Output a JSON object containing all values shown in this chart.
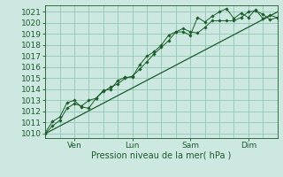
{
  "background_color": "#cce8e0",
  "grid_color": "#99ccbb",
  "line_color": "#1a5c2a",
  "marker_color": "#1a5c2a",
  "ylabel_ticks": [
    1010,
    1011,
    1012,
    1013,
    1014,
    1015,
    1016,
    1017,
    1018,
    1019,
    1020,
    1021
  ],
  "xlabel": "Pression niveau de la mer( hPa )",
  "xlim": [
    0,
    96
  ],
  "ylim": [
    1009.6,
    1021.6
  ],
  "x_tick_positions": [
    12,
    36,
    60,
    84
  ],
  "x_tick_labels": [
    "Ven",
    "Lun",
    "Sam",
    "Dim"
  ],
  "series1_x": [
    0,
    3,
    6,
    9,
    12,
    15,
    18,
    21,
    24,
    27,
    30,
    33,
    36,
    39,
    42,
    45,
    48,
    51,
    54,
    57,
    60,
    63,
    66,
    69,
    72,
    75,
    78,
    81,
    84,
    87,
    90,
    93,
    96
  ],
  "series1_y": [
    1010.0,
    1010.7,
    1011.2,
    1012.3,
    1012.7,
    1012.5,
    1013.0,
    1013.2,
    1013.8,
    1014.2,
    1014.5,
    1015.0,
    1015.2,
    1015.8,
    1016.5,
    1017.2,
    1017.8,
    1018.4,
    1019.2,
    1019.5,
    1019.2,
    1019.1,
    1019.6,
    1020.2,
    1020.2,
    1020.2,
    1020.2,
    1020.5,
    1021.0,
    1021.1,
    1020.8,
    1020.3,
    1020.5
  ],
  "series2_x": [
    0,
    3,
    6,
    9,
    12,
    15,
    18,
    21,
    24,
    27,
    30,
    33,
    36,
    39,
    42,
    45,
    48,
    51,
    54,
    57,
    60,
    63,
    66,
    69,
    72,
    75,
    78,
    81,
    84,
    87,
    90,
    93,
    96
  ],
  "series2_y": [
    1010.1,
    1011.1,
    1011.5,
    1012.8,
    1013.0,
    1012.4,
    1012.3,
    1013.2,
    1013.9,
    1014.0,
    1014.8,
    1015.1,
    1015.1,
    1016.2,
    1017.0,
    1017.4,
    1018.0,
    1018.9,
    1019.2,
    1019.2,
    1018.9,
    1020.5,
    1020.1,
    1020.6,
    1021.0,
    1021.3,
    1020.4,
    1020.9,
    1020.5,
    1021.2,
    1020.4,
    1020.7,
    1020.5
  ],
  "series3_x": [
    0,
    96
  ],
  "series3_y": [
    1010.0,
    1021.0
  ]
}
